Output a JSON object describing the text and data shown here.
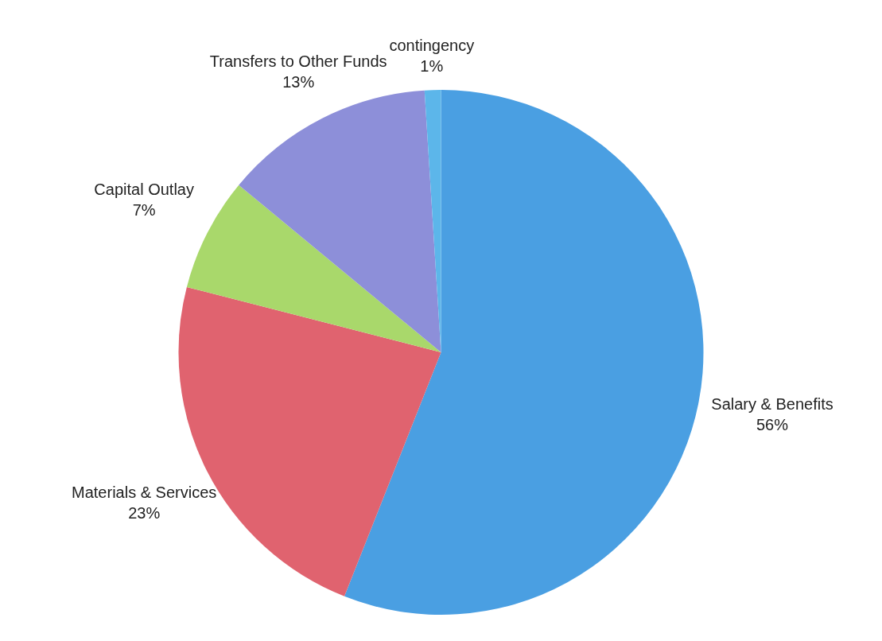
{
  "chart_data": {
    "type": "pie",
    "categories": [
      "Salary & Benefits",
      "Materials & Services",
      "Capital Outlay",
      "Transfers to Other Funds",
      "contingency"
    ],
    "values": [
      56,
      23,
      7,
      13,
      1
    ],
    "value_labels": [
      "56%",
      "23%",
      "7%",
      "13%",
      "1%"
    ],
    "colors": [
      "#4a9fe2",
      "#e0636f",
      "#a9d86b",
      "#8d8fd9",
      "#5cb6ea"
    ],
    "legend": false
  }
}
